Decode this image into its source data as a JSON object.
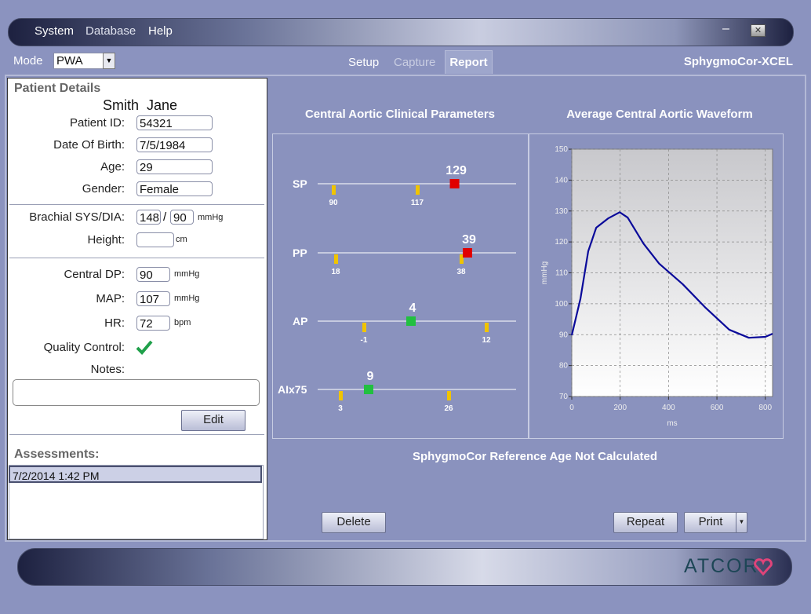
{
  "menu": {
    "items": [
      "System",
      "Database",
      "Help"
    ]
  },
  "toolbar": {
    "mode_label": "Mode",
    "mode_value": "PWA",
    "tabs": [
      "Setup",
      "Capture",
      "Report"
    ],
    "brand": "SphygmoCor-XCEL"
  },
  "patient": {
    "title": "Patient Details",
    "name": "Smith  Jane",
    "fields": [
      {
        "label": "Patient ID:",
        "value": "54321"
      },
      {
        "label": "Date Of Birth:",
        "value": "7/5/1984"
      },
      {
        "label": "Age:",
        "value": "29"
      },
      {
        "label": "Gender:",
        "value": "Female"
      }
    ],
    "brachial": {
      "label": "Brachial SYS/DIA:",
      "sys": "148",
      "sep": "/",
      "dia": "90",
      "unit": "mmHg"
    },
    "height": {
      "label": "Height:",
      "unit": "cm"
    },
    "central": [
      {
        "label": "Central DP:",
        "value": "90",
        "unit": "mmHg"
      },
      {
        "label": "MAP:",
        "value": "107",
        "unit": "mmHg"
      },
      {
        "label": "HR:",
        "value": "72",
        "unit": "bpm"
      }
    ],
    "quality_label": "Quality Control:",
    "notes_label": "Notes:",
    "edit_button": "Edit",
    "assessments_title": "Assessments:",
    "assessments": [
      "7/2/2014 1:42 PM"
    ]
  },
  "parameters": {
    "title": "Central Aortic Clinical Parameters",
    "rows": [
      {
        "name": "SP",
        "refs": [
          90,
          117
        ],
        "value": 129,
        "color": "#e00000"
      },
      {
        "name": "PP",
        "refs": [
          18,
          38
        ],
        "value": 39,
        "color": "#e00000"
      },
      {
        "name": "AP",
        "refs": [
          -1,
          12
        ],
        "value": 4,
        "color": "#22c040"
      },
      {
        "name": "AIx75",
        "refs": [
          3,
          26
        ],
        "value": 9,
        "color": "#22c040"
      }
    ]
  },
  "chart_data": {
    "type": "line",
    "title": "Average Central Aortic Waveform",
    "x_label": "ms",
    "y_label": "mmHg",
    "x": [
      0,
      36,
      68,
      101,
      150,
      198,
      231,
      296,
      361,
      459,
      553,
      651,
      732,
      800,
      830
    ],
    "series": [
      {
        "color": "#0a0a9a",
        "values": [
          89.8,
          101.7,
          117,
          124.6,
          127.6,
          129.6,
          127.9,
          119.5,
          113,
          106.3,
          98.7,
          91.6,
          89,
          89.3,
          90.3
        ]
      }
    ],
    "xlim": [
      0,
      830
    ],
    "ylim": [
      70,
      150
    ],
    "xticks": [
      0,
      200,
      400,
      600,
      800
    ],
    "yticks": [
      70,
      80,
      90,
      100,
      110,
      120,
      130,
      140,
      150
    ],
    "grid": true
  },
  "status": "SphygmoCor Reference Age Not Calculated",
  "buttons": {
    "delete": "Delete",
    "repeat": "Repeat",
    "print": "Print"
  },
  "logo": "ATCOR"
}
